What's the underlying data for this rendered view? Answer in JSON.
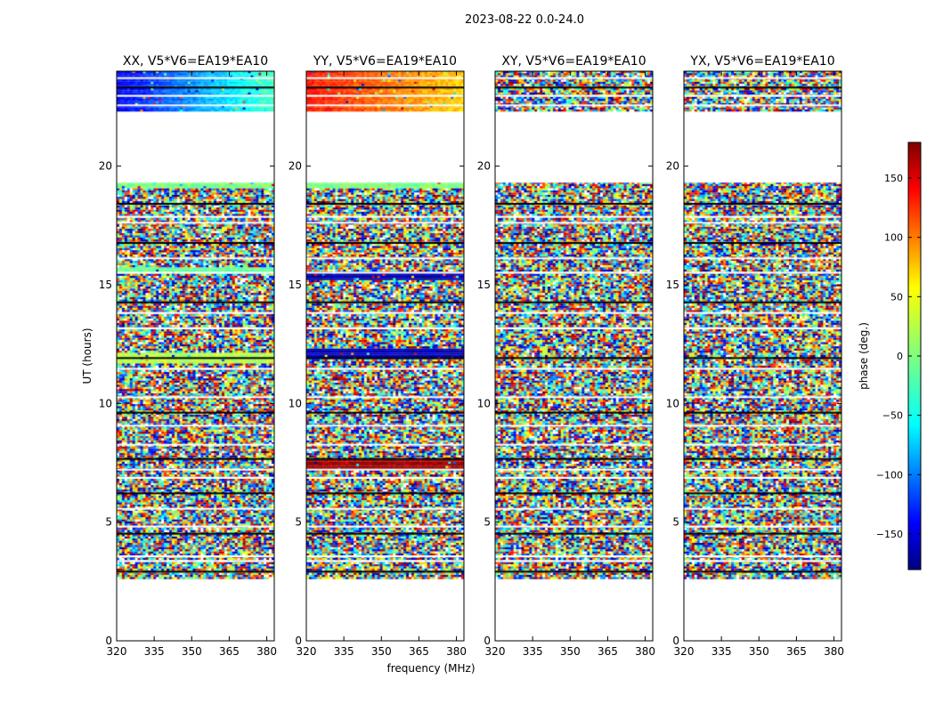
{
  "figure_title": "2023-08-22 0.0-24.0",
  "chart_data": {
    "type": "heatmap",
    "title": "2023-08-22 0.0-24.0",
    "xlabel": "frequency (MHz)",
    "ylabel": "UT (hours)",
    "xlim": [
      320,
      383
    ],
    "ylim": [
      0,
      24
    ],
    "xticks": [
      320,
      335,
      350,
      365,
      380
    ],
    "yticks": [
      0,
      5,
      10,
      15,
      20
    ],
    "colorbar": {
      "label": "phase (deg.)",
      "range": [
        -180,
        180
      ],
      "ticks": [
        -150,
        -100,
        -50,
        0,
        50,
        100,
        150
      ],
      "colormap": "jet",
      "colors": [
        "#00007f",
        "#0000ff",
        "#007fff",
        "#00ffff",
        "#7fff7f",
        "#ffff00",
        "#ff7f00",
        "#ff0000",
        "#7f0000"
      ]
    },
    "panels": [
      {
        "title": "XX, V5*V6=EA19*EA10",
        "polarization": "XX"
      },
      {
        "title": "YY, V5*V6=EA19*EA10",
        "polarization": "YY"
      },
      {
        "title": "XY, V5*V6=EA19*EA10",
        "polarization": "XY"
      },
      {
        "title": "YX, V5*V6=EA19*EA10",
        "polarization": "YX"
      }
    ],
    "data_coverage_hours": [
      [
        2.6,
        19.3
      ],
      [
        22.3,
        24.0
      ]
    ],
    "empty_ranges_hours": [
      [
        0,
        2.6
      ],
      [
        19.3,
        22.3
      ]
    ],
    "flagged_time_rows_hours": [
      2.95,
      3.4,
      3.6,
      4.55,
      4.85,
      5.6,
      6.25,
      6.9,
      7.25,
      7.7,
      8.3,
      9.1,
      9.65,
      10.3,
      11.5,
      11.95,
      13.2,
      13.85,
      14.3,
      15.55,
      16.15,
      16.8,
      17.65,
      17.9,
      18.45,
      22.6,
      23.0,
      23.35,
      23.75
    ],
    "coherent_phase_segments": [
      {
        "polarization": "XX",
        "start": 22.3,
        "end": 24.0,
        "phase_deg_start": -140,
        "phase_deg_end": -20
      },
      {
        "polarization": "XX",
        "start": 15.45,
        "end": 15.7,
        "phase_deg": -10
      },
      {
        "polarization": "XX",
        "start": 11.65,
        "end": 12.05,
        "phase_deg": 20
      },
      {
        "polarization": "XX",
        "start": 19.0,
        "end": 19.3,
        "phase_deg": 0
      },
      {
        "polarization": "YY",
        "start": 22.3,
        "end": 24.0,
        "phase_deg_start": 130,
        "phase_deg_end": 60
      },
      {
        "polarization": "YY",
        "start": 15.15,
        "end": 15.55,
        "phase_deg": -165
      },
      {
        "polarization": "YY",
        "start": 11.8,
        "end": 12.3,
        "phase_deg": -160
      },
      {
        "polarization": "YY",
        "start": 7.15,
        "end": 7.55,
        "phase_deg": 170
      },
      {
        "polarization": "YY",
        "start": 19.0,
        "end": 19.3,
        "phase_deg": 0
      }
    ]
  }
}
